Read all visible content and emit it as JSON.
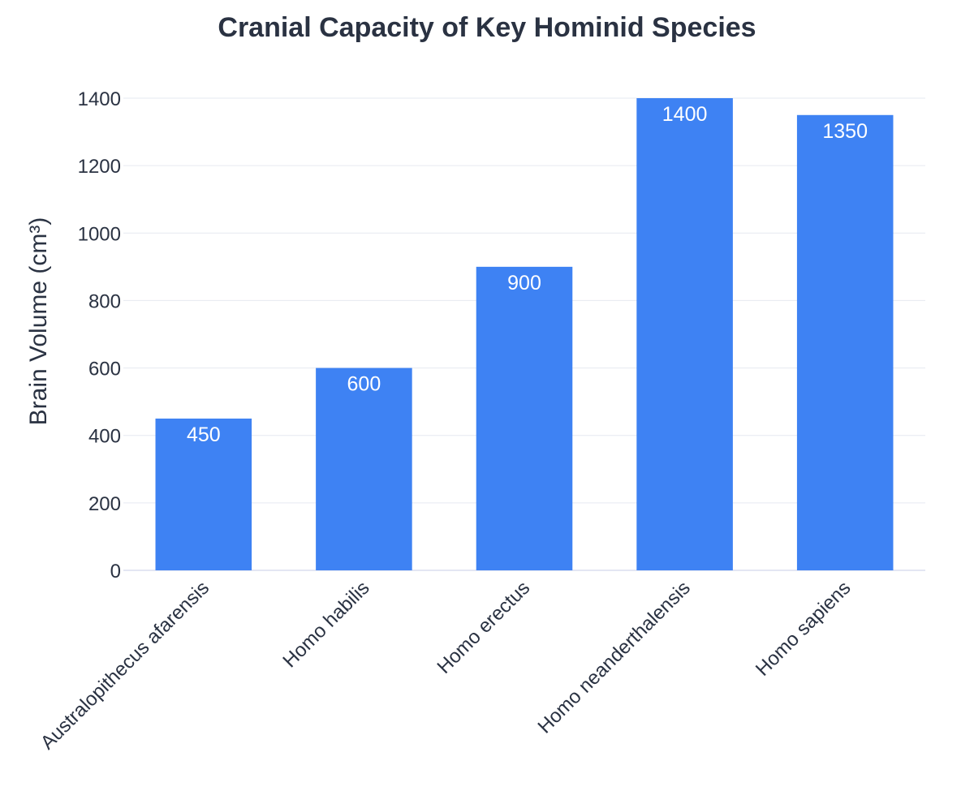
{
  "chart_data": {
    "type": "bar",
    "title": "Cranial Capacity of Key Hominid Species",
    "xlabel": "",
    "ylabel": "Brain Volume (cm³)",
    "categories": [
      "Australopithecus afarensis",
      "Homo habilis",
      "Homo erectus",
      "Homo neanderthalensis",
      "Homo sapiens"
    ],
    "values": [
      450,
      600,
      900,
      1400,
      1350
    ],
    "ylim": [
      0,
      1400
    ],
    "yticks": [
      0,
      200,
      400,
      600,
      800,
      1000,
      1200,
      1400
    ],
    "grid": true,
    "legend": "none",
    "data_labels": "inside-top",
    "bar_color": "#3e82f3",
    "label_color": "#ffffff"
  }
}
